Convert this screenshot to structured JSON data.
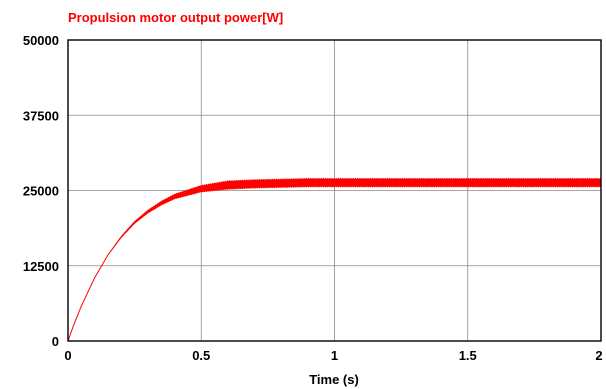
{
  "chart_data": {
    "type": "line",
    "title": "Propulsion motor output power[W]",
    "xlabel": "Time (s)",
    "ylabel": "",
    "xlim": [
      0,
      2
    ],
    "ylim": [
      0,
      50000
    ],
    "x_ticks": [
      "0",
      "0.5",
      "1",
      "1.5",
      "2"
    ],
    "y_ticks": [
      "0",
      "12500",
      "25000",
      "37500",
      "50000"
    ],
    "grid": true,
    "series": [
      {
        "color": "#ff0000",
        "x": [
          0,
          0.02,
          0.05,
          0.1,
          0.15,
          0.2,
          0.25,
          0.3,
          0.35,
          0.4,
          0.5,
          0.6,
          0.7,
          0.8,
          0.9,
          1.0,
          1.2,
          1.4,
          1.6,
          1.8,
          2.0
        ],
        "y": [
          0,
          2500,
          5800,
          10500,
          14300,
          17300,
          19700,
          21500,
          22900,
          24000,
          25300,
          25900,
          26100,
          26200,
          26300,
          26300,
          26300,
          26300,
          26300,
          26300,
          26300
        ],
        "ripple_amplitude": 700
      }
    ],
    "title_color": "#ff0000"
  }
}
